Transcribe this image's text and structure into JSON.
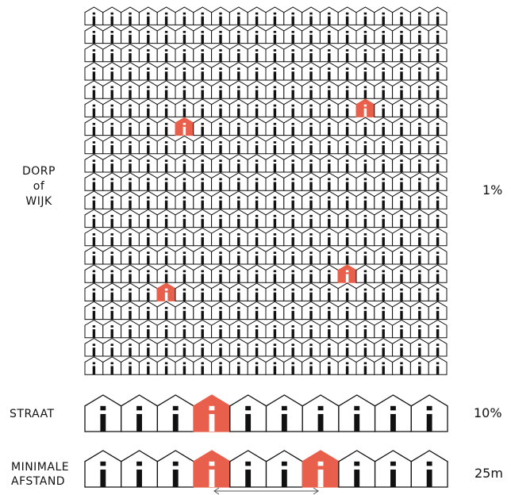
{
  "rows": [
    {
      "label_lines": [
        "DORP",
        "of",
        "WIJK"
      ],
      "percentage": "1%",
      "grid": {
        "columns": 20,
        "rows": 20,
        "highlighted": [
          [
            5,
            6
          ],
          [
            15,
            5
          ],
          [
            14,
            14
          ],
          [
            4,
            15
          ]
        ]
      }
    },
    {
      "label_lines": [
        "STRAAT"
      ],
      "percentage": "10%",
      "houses": 10,
      "highlighted": [
        3
      ]
    },
    {
      "label_lines": [
        "MINIMALE",
        "AFSTAND"
      ],
      "percentage": "25m",
      "houses": 10,
      "highlighted": [
        3,
        6
      ],
      "distance_arrow": true
    }
  ],
  "colors": {
    "highlight": "#E8604C",
    "outline": "#111111",
    "background": "#ffffff"
  }
}
